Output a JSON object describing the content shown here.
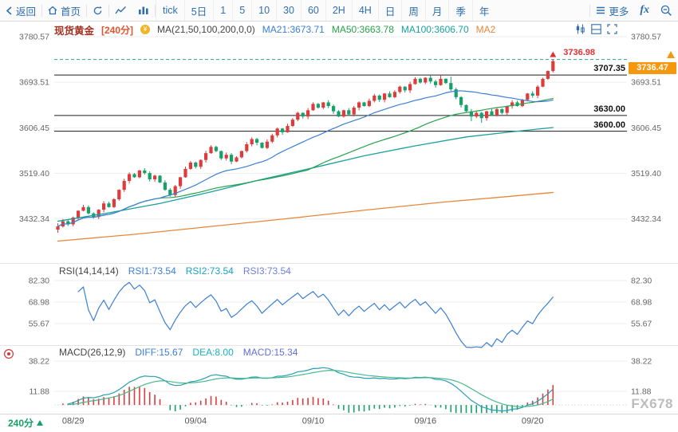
{
  "toolbar": {
    "back": "返回",
    "home": "首页",
    "icons": [
      "back-arrow",
      "home",
      "refresh",
      "line-chart",
      "volume-bars",
      "more-menu",
      "fx-function",
      "zoom-out"
    ],
    "timeframes": [
      "tick",
      "5日",
      "1",
      "5",
      "10",
      "30",
      "60",
      "2H",
      "4H",
      "日",
      "周",
      "月",
      "季",
      "年"
    ],
    "more": "更多",
    "fx": "fx"
  },
  "main_header": {
    "symbol": "现货黄金",
    "period": "[240分]",
    "ma_label": "MA(21,50,100,200,0,0)",
    "ma21": "MA21:3673.71",
    "ma50": "MA50:3663.78",
    "ma100": "MA100:3606.70",
    "ma200": "MA2"
  },
  "rsi_header": {
    "label": "RSI(14,14,14)",
    "rsi1": "RSI1:73.54",
    "rsi2": "RSI2:73.54",
    "rsi3": "RSI3:73.54"
  },
  "macd_header": {
    "label": "MACD(26,12,9)",
    "diff": "DIFF:15.67",
    "dea": "DEA:8.00",
    "macd": "MACD:15.34"
  },
  "levels": {
    "dashed_label": "3736.98",
    "l1": "3707.35",
    "l2": "3630.00",
    "l3": "3600.00",
    "badge": "3736.47"
  },
  "footer": {
    "period": "240分",
    "watermark": "FX678"
  },
  "chart_data": {
    "type": "candlestick",
    "title": "现货黄金 240分",
    "panels": [
      "price",
      "RSI",
      "MACD"
    ],
    "price_ticks": [
      3780.57,
      3693.51,
      3606.45,
      3519.4,
      3432.34
    ],
    "levels": {
      "resistance_dashed": 3736.98,
      "line_3707": 3707.35,
      "line_3630": 3630.0,
      "line_3600": 3600.0,
      "last_price": 3736.47
    },
    "ma_values": {
      "ma21": 3673.71,
      "ma50": 3663.78,
      "ma100": 3606.7
    },
    "open_first": 3412,
    "closes": [
      3418,
      3428,
      3422,
      3435,
      3448,
      3455,
      3443,
      3436,
      3450,
      3462,
      3455,
      3470,
      3488,
      3505,
      3518,
      3512,
      3525,
      3520,
      3508,
      3515,
      3502,
      3488,
      3478,
      3495,
      3512,
      3528,
      3540,
      3532,
      3545,
      3558,
      3570,
      3562,
      3548,
      3555,
      3542,
      3550,
      3562,
      3575,
      3585,
      3578,
      3568,
      3580,
      3592,
      3605,
      3598,
      3610,
      3622,
      3635,
      3628,
      3640,
      3652,
      3645,
      3655,
      3648,
      3638,
      3628,
      3640,
      3632,
      3645,
      3655,
      3648,
      3658,
      3668,
      3660,
      3672,
      3665,
      3675,
      3685,
      3678,
      3690,
      3700,
      3693,
      3702,
      3695,
      3688,
      3700,
      3692,
      3680,
      3665,
      3650,
      3638,
      3628,
      3635,
      3625,
      3638,
      3630,
      3642,
      3635,
      3648,
      3655,
      3648,
      3660,
      3672,
      3668,
      3685,
      3700,
      3715,
      3734
    ],
    "special_highs": {
      "0": 3424,
      "75": 3707.3,
      "77": 3704,
      "97": 3736.98
    },
    "special_lows": {
      "0": 3406,
      "81": 3619,
      "83": 3616
    },
    "ma100_points": [
      [
        0,
        3428
      ],
      [
        10,
        3444
      ],
      [
        20,
        3462
      ],
      [
        30,
        3484
      ],
      [
        40,
        3508
      ],
      [
        50,
        3530
      ],
      [
        60,
        3553
      ],
      [
        70,
        3572
      ],
      [
        80,
        3589
      ],
      [
        90,
        3600
      ],
      [
        97,
        3607
      ]
    ],
    "ma200_points": [
      [
        0,
        3390
      ],
      [
        15,
        3403
      ],
      [
        30,
        3418
      ],
      [
        45,
        3433
      ],
      [
        60,
        3449
      ],
      [
        75,
        3464
      ],
      [
        88,
        3475
      ],
      [
        97,
        3483
      ]
    ],
    "date_ticks": [
      {
        "label": "08/29",
        "index": 3
      },
      {
        "label": "09/04",
        "index": 27
      },
      {
        "label": "09/10",
        "index": 50
      },
      {
        "label": "09/16",
        "index": 72
      },
      {
        "label": "09/20",
        "index": 93
      }
    ],
    "rsi": {
      "period": 14,
      "ticks": [
        82.3,
        68.98,
        55.67
      ],
      "last": 73.54
    },
    "macd": {
      "params": [
        26,
        12,
        9
      ],
      "ticks": [
        38.22,
        11.88
      ],
      "diff_last": 15.67,
      "dea_last": 8.0,
      "macd_last": 15.34
    },
    "colors": {
      "up": "#de3c3c",
      "down": "#16a06a",
      "ma21": "#3b7fd4",
      "ma50": "#27a24b",
      "ma100": "#1aa0a0",
      "ma200": "#e8873a",
      "rsi_line": "#3b7fd4",
      "diff_line": "#2a9db4",
      "dea_line": "#45b98c",
      "dashed_level": "#26a69a"
    }
  }
}
